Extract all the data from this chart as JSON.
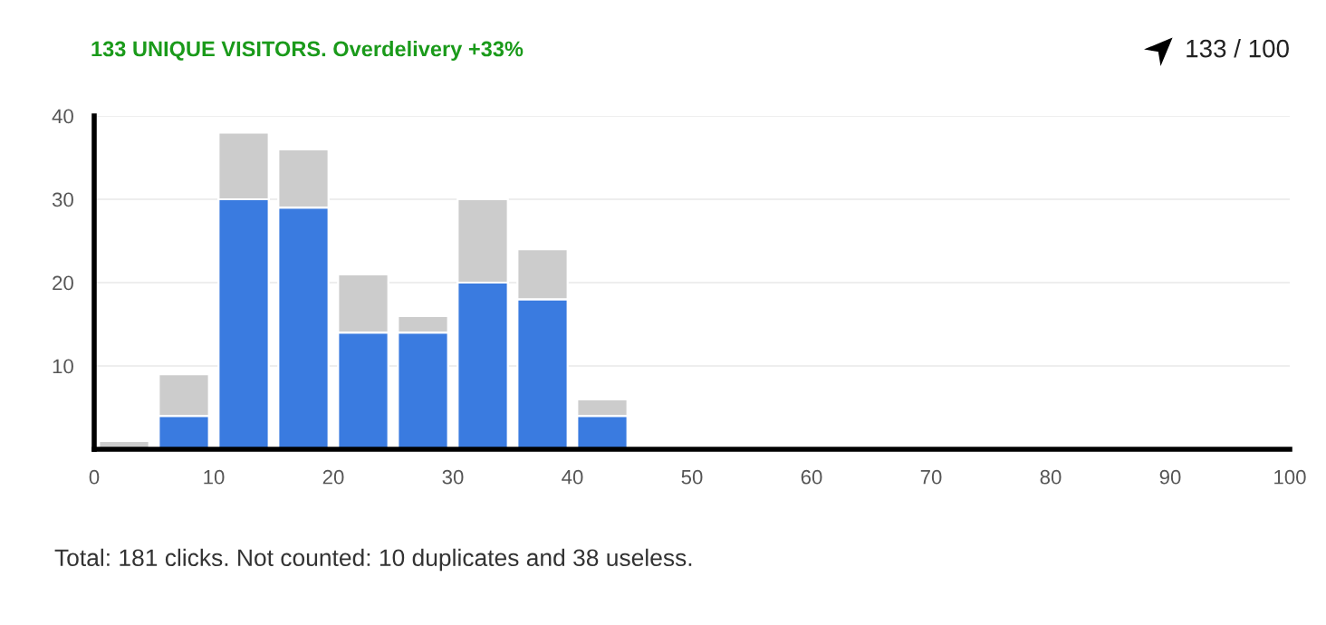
{
  "chart_data": {
    "type": "bar",
    "stacked": true,
    "title": "133 UNIQUE VISITORS. Overdelivery +33%",
    "x": [
      2.5,
      7.5,
      12.5,
      17.5,
      22.5,
      27.5,
      32.5,
      37.5,
      42.5
    ],
    "series": [
      {
        "color": "#3a7be0",
        "values": [
          0,
          4,
          30,
          29,
          14,
          14,
          20,
          18,
          4
        ]
      },
      {
        "color": "#cccccc",
        "values": [
          1,
          5,
          8,
          7,
          7,
          2,
          10,
          6,
          2
        ]
      }
    ],
    "xlim": [
      0,
      100
    ],
    "xticks": [
      0,
      10,
      20,
      30,
      40,
      50,
      60,
      70,
      80,
      90,
      100
    ],
    "ylim": [
      0,
      40
    ],
    "yticks": [
      {
        "value": 0,
        "label": null
      },
      10,
      20,
      30,
      40
    ],
    "grid": "y",
    "annotations": [
      "133 / 100",
      "Total: 181 clicks. Not counted: 10 duplicates and 38 useless."
    ]
  }
}
